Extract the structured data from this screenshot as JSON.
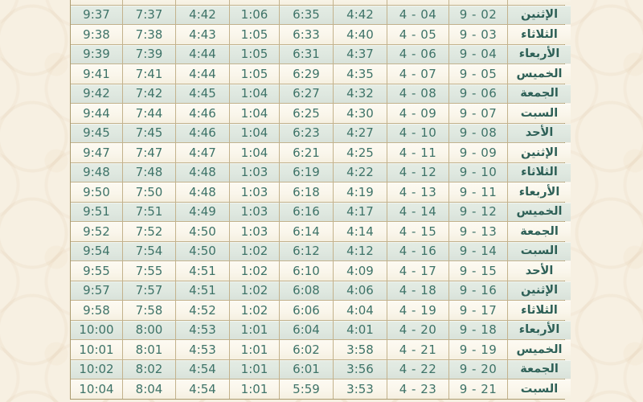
{
  "colors": {
    "page_background": "#f7f0e2",
    "table_border": "#c3b28c",
    "row_green": "#dfe8e0",
    "row_cream": "#faf6eb",
    "time_text": "#3e7368",
    "day_text": "#2e6057"
  },
  "table": {
    "rows": [
      {
        "cells": [
          "9:37",
          "7:37",
          "4:42",
          "1:06",
          "6:35",
          "4:42",
          "4 - 04",
          "9 - 02",
          "الإثنين"
        ]
      },
      {
        "cells": [
          "9:38",
          "7:38",
          "4:43",
          "1:05",
          "6:33",
          "4:40",
          "4 - 05",
          "9 - 03",
          "الثلاثاء"
        ]
      },
      {
        "cells": [
          "9:39",
          "7:39",
          "4:44",
          "1:05",
          "6:31",
          "4:37",
          "4 - 06",
          "9 - 04",
          "الأربعاء"
        ]
      },
      {
        "cells": [
          "9:41",
          "7:41",
          "4:44",
          "1:05",
          "6:29",
          "4:35",
          "4 - 07",
          "9 - 05",
          "الخميس"
        ]
      },
      {
        "cells": [
          "9:42",
          "7:42",
          "4:45",
          "1:04",
          "6:27",
          "4:32",
          "4 - 08",
          "9 - 06",
          "الجمعة"
        ]
      },
      {
        "cells": [
          "9:44",
          "7:44",
          "4:46",
          "1:04",
          "6:25",
          "4:30",
          "4 - 09",
          "9 - 07",
          "السبت"
        ]
      },
      {
        "cells": [
          "9:45",
          "7:45",
          "4:46",
          "1:04",
          "6:23",
          "4:27",
          "4 - 10",
          "9 - 08",
          "الأحد"
        ]
      },
      {
        "cells": [
          "9:47",
          "7:47",
          "4:47",
          "1:04",
          "6:21",
          "4:25",
          "4 - 11",
          "9 - 09",
          "الإثنين"
        ]
      },
      {
        "cells": [
          "9:48",
          "7:48",
          "4:48",
          "1:03",
          "6:19",
          "4:22",
          "4 - 12",
          "9 - 10",
          "الثلاثاء"
        ]
      },
      {
        "cells": [
          "9:50",
          "7:50",
          "4:48",
          "1:03",
          "6:18",
          "4:19",
          "4 - 13",
          "9 - 11",
          "الأربعاء"
        ]
      },
      {
        "cells": [
          "9:51",
          "7:51",
          "4:49",
          "1:03",
          "6:16",
          "4:17",
          "4 - 14",
          "9 - 12",
          "الخميس"
        ]
      },
      {
        "cells": [
          "9:52",
          "7:52",
          "4:50",
          "1:03",
          "6:14",
          "4:14",
          "4 - 15",
          "9 - 13",
          "الجمعة"
        ]
      },
      {
        "cells": [
          "9:54",
          "7:54",
          "4:50",
          "1:02",
          "6:12",
          "4:12",
          "4 - 16",
          "9 - 14",
          "السبت"
        ]
      },
      {
        "cells": [
          "9:55",
          "7:55",
          "4:51",
          "1:02",
          "6:10",
          "4:09",
          "4 - 17",
          "9 - 15",
          "الأحد"
        ]
      },
      {
        "cells": [
          "9:57",
          "7:57",
          "4:51",
          "1:02",
          "6:08",
          "4:06",
          "4 - 18",
          "9 - 16",
          "الإثنين"
        ]
      },
      {
        "cells": [
          "9:58",
          "7:58",
          "4:52",
          "1:02",
          "6:06",
          "4:04",
          "4 - 19",
          "9 - 17",
          "الثلاثاء"
        ]
      },
      {
        "cells": [
          "10:00",
          "8:00",
          "4:53",
          "1:01",
          "6:04",
          "4:01",
          "4 - 20",
          "9 - 18",
          "الأربعاء"
        ]
      },
      {
        "cells": [
          "10:01",
          "8:01",
          "4:53",
          "1:01",
          "6:02",
          "3:58",
          "4 - 21",
          "9 - 19",
          "الخميس"
        ]
      },
      {
        "cells": [
          "10:02",
          "8:02",
          "4:54",
          "1:01",
          "6:01",
          "3:56",
          "4 - 22",
          "9 - 20",
          "الجمعة"
        ]
      },
      {
        "cells": [
          "10:04",
          "8:04",
          "4:54",
          "1:01",
          "5:59",
          "3:53",
          "4 - 23",
          "9 - 21",
          "السبت"
        ]
      }
    ]
  }
}
